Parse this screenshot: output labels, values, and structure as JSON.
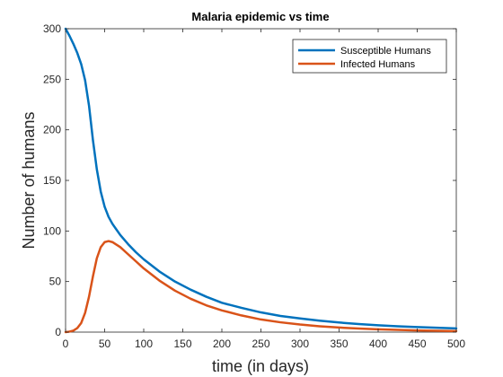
{
  "chart_data": {
    "type": "line",
    "title": "Malaria epidemic vs time",
    "xlabel": "time (in days)",
    "ylabel": "Number of humans",
    "xlim": [
      0,
      500
    ],
    "ylim": [
      0,
      300
    ],
    "xticks": [
      0,
      50,
      100,
      150,
      200,
      250,
      300,
      350,
      400,
      450,
      500
    ],
    "yticks": [
      0,
      50,
      100,
      150,
      200,
      250,
      300
    ],
    "grid": false,
    "legend_position": "top-right",
    "series": [
      {
        "name": "Susceptible Humans",
        "color": "#0072BD",
        "x": [
          0,
          5,
          10,
          15,
          20,
          25,
          30,
          35,
          40,
          45,
          50,
          55,
          60,
          70,
          80,
          90,
          100,
          120,
          140,
          160,
          180,
          200,
          225,
          250,
          275,
          300,
          325,
          350,
          375,
          400,
          425,
          450,
          475,
          500
        ],
        "y": [
          300,
          293,
          285,
          276,
          265,
          249,
          224,
          190,
          161,
          139,
          124,
          114,
          107,
          96,
          87,
          79,
          72,
          60,
          50,
          42,
          35,
          29,
          24,
          19.5,
          16,
          13.5,
          11.3,
          9.5,
          8,
          6.8,
          5.8,
          5,
          4.3,
          3.7
        ]
      },
      {
        "name": "Infected Humans",
        "color": "#D95319",
        "x": [
          0,
          5,
          10,
          15,
          20,
          25,
          30,
          35,
          40,
          45,
          50,
          55,
          60,
          70,
          80,
          90,
          100,
          120,
          140,
          160,
          180,
          200,
          225,
          250,
          275,
          300,
          325,
          350,
          375,
          400,
          425,
          450,
          475,
          500
        ],
        "y": [
          0,
          0.5,
          1.5,
          4,
          9,
          19,
          35,
          55,
          73,
          84,
          89,
          90,
          89,
          84,
          77,
          70,
          63,
          51,
          41,
          33,
          26.5,
          21.5,
          16.5,
          12.5,
          9.7,
          7.5,
          5.8,
          4.5,
          3.5,
          2.8,
          2.2,
          1.7,
          1.3,
          1
        ]
      }
    ]
  }
}
